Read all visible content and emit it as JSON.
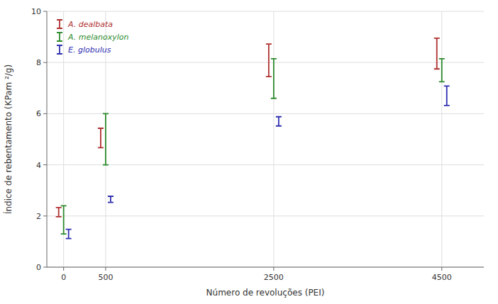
{
  "chart_data": {
    "type": "errorbar",
    "x": [
      0,
      500,
      2500,
      4500
    ],
    "xlabel": "Número de revoluções (PEI)",
    "ylabel": "Índice de rebentamento (KPam  ²/g)",
    "xlim": [
      -200,
      5000
    ],
    "ylim": [
      0,
      10
    ],
    "xticks": [
      0,
      500,
      2500,
      4500
    ],
    "yticks": [
      0,
      2,
      4,
      6,
      8,
      10
    ],
    "grid": true,
    "legend": "upper left",
    "series": [
      {
        "name": "A. dealbata",
        "color": "#b03030",
        "values": [
          2.15,
          5.05,
          8.0,
          8.3
        ],
        "error_low": [
          0.18,
          0.38,
          0.55,
          0.55
        ],
        "error_high": [
          0.18,
          0.38,
          0.72,
          0.65
        ]
      },
      {
        "name": "A. melanoxylon",
        "color": "#2e8b2e",
        "values": [
          1.85,
          5.1,
          8.0,
          8.0
        ],
        "error_low": [
          0.55,
          1.1,
          1.4,
          0.75
        ],
        "error_high": [
          0.55,
          0.9,
          0.15,
          0.15
        ]
      },
      {
        "name": "E. globulus",
        "color": "#3030b0",
        "values": [
          1.3,
          2.65,
          5.7,
          6.7
        ],
        "error_low": [
          0.18,
          0.12,
          0.18,
          0.38
        ],
        "error_high": [
          0.18,
          0.12,
          0.18,
          0.38
        ]
      }
    ]
  }
}
